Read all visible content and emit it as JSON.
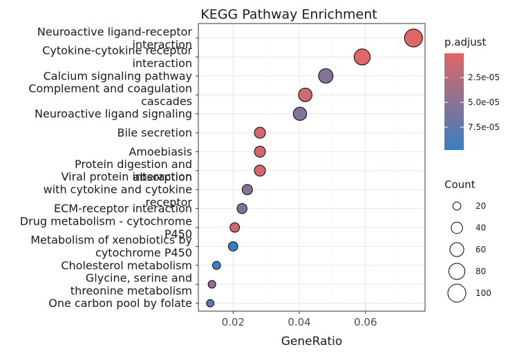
{
  "chart_data": {
    "type": "scatter",
    "title": "KEGG Pathway Enrichment",
    "xlabel": "GeneRatio",
    "ylabel": "",
    "xlim": [
      0.0095,
      0.078
    ],
    "xticks": [
      0.02,
      0.04,
      0.06
    ],
    "xtick_labels": [
      "0.02",
      "0.04",
      "0.06"
    ],
    "grid": true,
    "categories": [
      [
        "Neuroactive ligand-receptor",
        "interaction"
      ],
      [
        "Cytokine-cytokine receptor",
        "interaction"
      ],
      [
        "Calcium signaling pathway"
      ],
      [
        "Complement and coagulation",
        "cascades"
      ],
      [
        "Neuroactive ligand signaling"
      ],
      [
        "Bile secretion"
      ],
      [
        "Amoebiasis"
      ],
      [
        "Protein digestion and",
        "absorption"
      ],
      [
        "Viral protein interaction",
        "with cytokine and cytokine",
        "receptor"
      ],
      [
        "ECM-receptor interaction"
      ],
      [
        "Drug metabolism - cytochrome",
        "P450"
      ],
      [
        "Metabolism of xenobiotics by",
        "cytochrome P450"
      ],
      [
        "Cholesterol metabolism"
      ],
      [
        "Glycine, serine and",
        "threonine metabolism"
      ],
      [
        "One carbon pool by folate"
      ]
    ],
    "points": [
      {
        "gene_ratio": 0.0745,
        "count": 100,
        "p_adjust": 5e-07
      },
      {
        "gene_ratio": 0.059,
        "count": 80,
        "p_adjust": 2e-06
      },
      {
        "gene_ratio": 0.048,
        "count": 65,
        "p_adjust": 5.5e-05
      },
      {
        "gene_ratio": 0.0418,
        "count": 57,
        "p_adjust": 1.2e-05
      },
      {
        "gene_ratio": 0.0402,
        "count": 55,
        "p_adjust": 5.5e-05
      },
      {
        "gene_ratio": 0.0281,
        "count": 38,
        "p_adjust": 1e-05
      },
      {
        "gene_ratio": 0.0281,
        "count": 38,
        "p_adjust": 1e-05
      },
      {
        "gene_ratio": 0.0281,
        "count": 38,
        "p_adjust": 8e-06
      },
      {
        "gene_ratio": 0.0243,
        "count": 33,
        "p_adjust": 5.5e-05
      },
      {
        "gene_ratio": 0.0227,
        "count": 31,
        "p_adjust": 6e-05
      },
      {
        "gene_ratio": 0.0205,
        "count": 28,
        "p_adjust": 1.2e-05
      },
      {
        "gene_ratio": 0.02,
        "count": 27,
        "p_adjust": 9.8e-05
      },
      {
        "gene_ratio": 0.015,
        "count": 20,
        "p_adjust": 9.5e-05
      },
      {
        "gene_ratio": 0.0136,
        "count": 18,
        "p_adjust": 4.5e-05
      },
      {
        "gene_ratio": 0.0131,
        "count": 17,
        "p_adjust": 7.5e-05
      }
    ],
    "color_legend": {
      "title": "p.adjust",
      "range": [
        5e-07,
        9.8e-05
      ],
      "ticks": [
        2.5e-05,
        5e-05,
        7.5e-05
      ],
      "tick_labels": [
        "2.5e-05",
        "5.0e-05",
        "7.5e-05"
      ],
      "low_color": "#E06666",
      "high_color": "#3A7EC2"
    },
    "size_legend": {
      "title": "Count",
      "values": [
        20,
        40,
        60,
        80,
        100
      ],
      "labels": [
        "20",
        "40",
        "60",
        "80",
        "100"
      ]
    },
    "legend_position": "right"
  }
}
